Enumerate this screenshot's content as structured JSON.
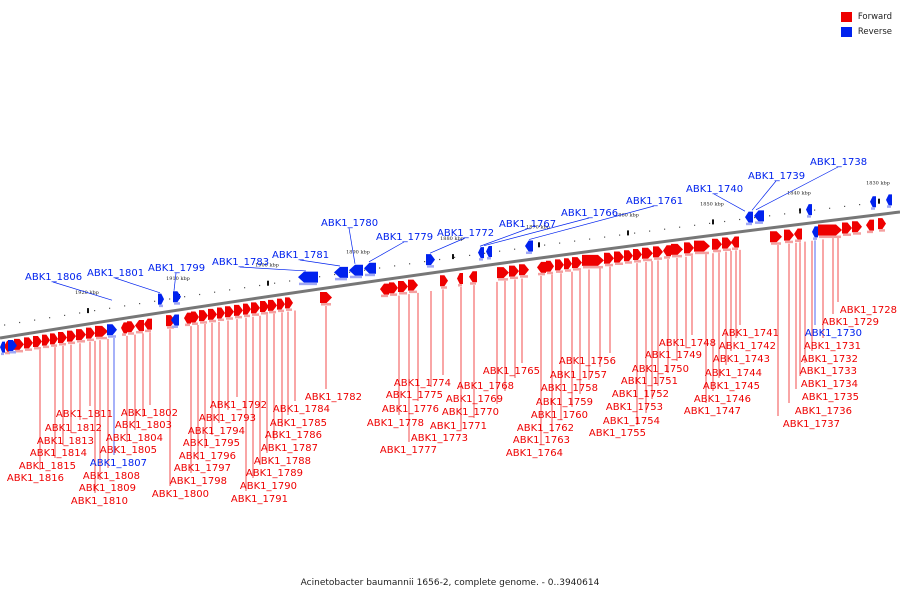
{
  "legend": {
    "forward_label": "Forward",
    "reverse_label": "Reverse",
    "forward_color": "#ee0000",
    "reverse_color": "#0022ee"
  },
  "caption": "Acinetobacter baumannii 1656-2, complete genome. - 0..3940614",
  "ruler_ticks": [
    "1830 kbp",
    "1840 kbp",
    "1850 kbp",
    "1860 kbp",
    "1870 kbp",
    "1880 kbp",
    "1890 kbp",
    "1900 kbp",
    "1910 kbp",
    "1920 kbp"
  ],
  "forward_genes": [
    "ABK1_1728",
    "ABK1_1729",
    "ABK1_1731",
    "ABK1_1732",
    "ABK1_1733",
    "ABK1_1734",
    "ABK1_1735",
    "ABK1_1736",
    "ABK1_1737",
    "ABK1_1741",
    "ABK1_1742",
    "ABK1_1743",
    "ABK1_1744",
    "ABK1_1745",
    "ABK1_1746",
    "ABK1_1747",
    "ABK1_1748",
    "ABK1_1749",
    "ABK1_1750",
    "ABK1_1751",
    "ABK1_1752",
    "ABK1_1753",
    "ABK1_1754",
    "ABK1_1755",
    "ABK1_1756",
    "ABK1_1757",
    "ABK1_1758",
    "ABK1_1759",
    "ABK1_1760",
    "ABK1_1762",
    "ABK1_1763",
    "ABK1_1764",
    "ABK1_1765",
    "ABK1_1768",
    "ABK1_1769",
    "ABK1_1770",
    "ABK1_1771",
    "ABK1_1773",
    "ABK1_1774",
    "ABK1_1775",
    "ABK1_1776",
    "ABK1_1777",
    "ABK1_1778",
    "ABK1_1782",
    "ABK1_1784",
    "ABK1_1785",
    "ABK1_1786",
    "ABK1_1787",
    "ABK1_1788",
    "ABK1_1789",
    "ABK1_1790",
    "ABK1_1791",
    "ABK1_1792",
    "ABK1_1793",
    "ABK1_1794",
    "ABK1_1795",
    "ABK1_1796",
    "ABK1_1797",
    "ABK1_1798",
    "ABK1_1800",
    "ABK1_1802",
    "ABK1_1803",
    "ABK1_1804",
    "ABK1_1805",
    "ABK1_1808",
    "ABK1_1809",
    "ABK1_1810",
    "ABK1_1811",
    "ABK1_1812",
    "ABK1_1813",
    "ABK1_1814",
    "ABK1_1815",
    "ABK1_1816"
  ],
  "reverse_genes_below": [
    "ABK1_1730",
    "ABK1_1807"
  ],
  "reverse_genes_above": [
    "ABK1_1738",
    "ABK1_1739",
    "ABK1_1740",
    "ABK1_1761",
    "ABK1_1766",
    "ABK1_1767",
    "ABK1_1772",
    "ABK1_1779",
    "ABK1_1780",
    "ABK1_1781",
    "ABK1_1783",
    "ABK1_1799",
    "ABK1_1801",
    "ABK1_1806"
  ]
}
